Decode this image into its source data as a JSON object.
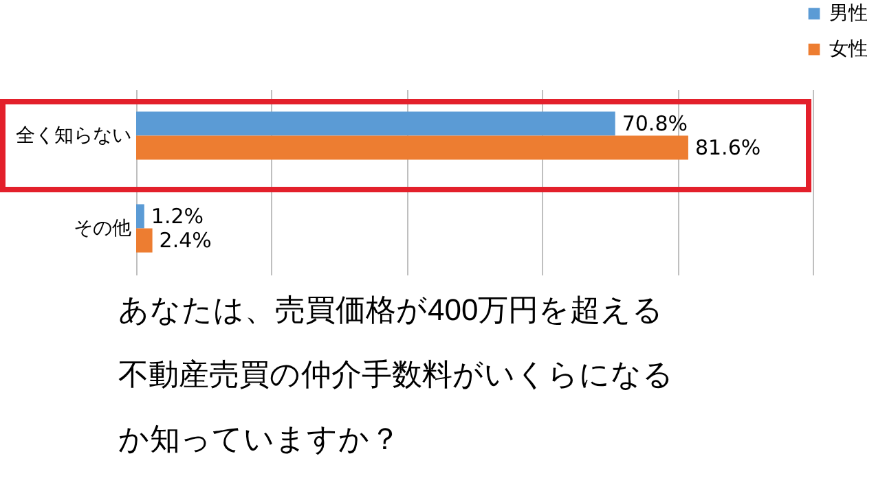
{
  "chart_data": {
    "type": "bar",
    "orientation": "horizontal",
    "title": "あなたは、売買価格が400万円を超える不動産売買の仲介手数料がいくらになるか知っていますか？",
    "categories": [
      "全く知らない",
      "その他"
    ],
    "series": [
      {
        "name": "男性",
        "color": "#5b9bd5",
        "values": [
          70.8,
          1.2
        ],
        "value_labels": [
          "70.8%",
          "1.2%"
        ]
      },
      {
        "name": "女性",
        "color": "#ed7d31",
        "values": [
          81.6,
          2.4
        ],
        "value_labels": [
          "81.6%",
          "2.4%"
        ]
      }
    ],
    "xlim": [
      0,
      100
    ],
    "xticks": [
      {
        "value": 0,
        "label": null
      },
      {
        "value": 20,
        "label": null
      },
      {
        "value": 40,
        "label": null
      },
      {
        "value": 60,
        "label": null
      },
      {
        "value": 80,
        "label": null
      },
      {
        "value": 100,
        "label": null
      }
    ],
    "grid": "x",
    "legend": "top right",
    "tick_labels": "y"
  }
}
